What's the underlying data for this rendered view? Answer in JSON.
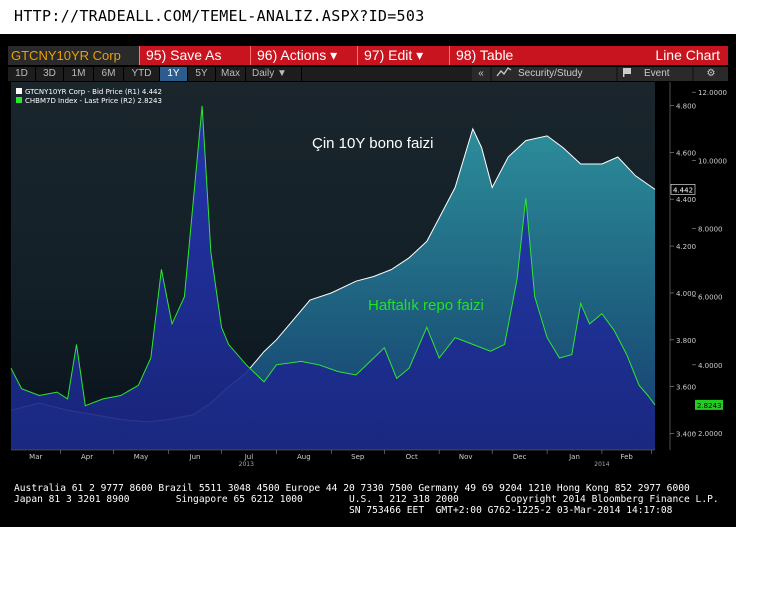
{
  "url": "HTTP://TRADEALL.COM/TEMEL-ANALIZ.ASPX?ID=503",
  "toolbar": {
    "ticker": "GTCNY10YR Corp",
    "save_num": "95)",
    "save_label": "Save As",
    "actions_num": "96)",
    "actions_label": "Actions",
    "edit_num": "97)",
    "edit_label": "Edit",
    "table_num": "98)",
    "table_label": "Table",
    "chart_type": "Line Chart",
    "dropdown_glyph": "▾"
  },
  "range_bar": {
    "periods": [
      "1D",
      "3D",
      "1M",
      "6M",
      "YTD",
      "1Y",
      "5Y",
      "Max"
    ],
    "active": "1Y",
    "frequency": "Daily",
    "frequency_glyph": "▼",
    "collapse_glyph": "«",
    "security_study": "Security/Study",
    "event": "Event",
    "settings_glyph": "⚙"
  },
  "colors": {
    "bond_line": "#ffffff",
    "bond_fill": "#2c8d9a",
    "repo_line": "#2ee62e",
    "repo_fill": "#1a2fa8",
    "background": "#000000",
    "toolbar": "#c8141e"
  },
  "chart_data": {
    "type": "area",
    "legend": [
      {
        "name": "GTCNY10YR Corp - Bid Price (R1)",
        "last": "4.442"
      },
      {
        "name": "CHBM7D Index - Last Price (R2)",
        "last": "2.8243"
      }
    ],
    "annotations": [
      "Çin 10Y bono faizi",
      "Haftalık repo faizi"
    ],
    "x_labels": [
      "Mar",
      "Apr",
      "May",
      "Jun",
      "Jul",
      "Aug",
      "Sep",
      "Oct",
      "Nov",
      "Dec",
      "Jan",
      "Feb"
    ],
    "year_labels": [
      "2013",
      "2014"
    ],
    "x_range": [
      "2013-03-04",
      "2014-03-03"
    ],
    "y1_axis": {
      "ticks": [
        "4.800",
        "4.600",
        "4.400",
        "4.200",
        "4.000",
        "3.800",
        "3.600",
        "3.400"
      ],
      "range": [
        3.33,
        4.9
      ]
    },
    "y2_axis": {
      "ticks": [
        "12.0000",
        "10.0000",
        "8.0000",
        "6.0000",
        "4.0000",
        "2.0000"
      ],
      "range": [
        1.5,
        12.3
      ]
    },
    "last_values": {
      "bond": "4.442",
      "repo": "2.8243"
    },
    "series": [
      {
        "key": "bond",
        "axis": "y1",
        "points": [
          [
            "2013-03-04",
            3.5
          ],
          [
            "2013-03-20",
            3.53
          ],
          [
            "2013-04-05",
            3.5
          ],
          [
            "2013-04-20",
            3.48
          ],
          [
            "2013-05-05",
            3.46
          ],
          [
            "2013-05-20",
            3.45
          ],
          [
            "2013-06-01",
            3.46
          ],
          [
            "2013-06-15",
            3.48
          ],
          [
            "2013-06-25",
            3.53
          ],
          [
            "2013-07-05",
            3.6
          ],
          [
            "2013-07-15",
            3.66
          ],
          [
            "2013-07-25",
            3.75
          ],
          [
            "2013-08-01",
            3.8
          ],
          [
            "2013-08-10",
            3.88
          ],
          [
            "2013-08-20",
            3.97
          ],
          [
            "2013-09-01",
            4.0
          ],
          [
            "2013-09-15",
            4.05
          ],
          [
            "2013-09-25",
            4.07
          ],
          [
            "2013-10-05",
            4.1
          ],
          [
            "2013-10-15",
            4.15
          ],
          [
            "2013-10-25",
            4.22
          ],
          [
            "2013-11-01",
            4.32
          ],
          [
            "2013-11-10",
            4.45
          ],
          [
            "2013-11-20",
            4.7
          ],
          [
            "2013-11-25",
            4.62
          ],
          [
            "2013-12-01",
            4.45
          ],
          [
            "2013-12-10",
            4.58
          ],
          [
            "2013-12-20",
            4.65
          ],
          [
            "2014-01-01",
            4.67
          ],
          [
            "2014-01-10",
            4.62
          ],
          [
            "2014-01-20",
            4.55
          ],
          [
            "2014-02-01",
            4.55
          ],
          [
            "2014-02-10",
            4.58
          ],
          [
            "2014-02-20",
            4.5
          ],
          [
            "2014-03-03",
            4.442
          ]
        ]
      },
      {
        "key": "repo",
        "axis": "y2",
        "points": [
          [
            "2013-03-04",
            3.9
          ],
          [
            "2013-03-10",
            3.3
          ],
          [
            "2013-03-20",
            3.1
          ],
          [
            "2013-03-30",
            3.2
          ],
          [
            "2013-04-05",
            3.0
          ],
          [
            "2013-04-10",
            4.6
          ],
          [
            "2013-04-15",
            2.8
          ],
          [
            "2013-04-25",
            3.0
          ],
          [
            "2013-05-05",
            3.1
          ],
          [
            "2013-05-15",
            3.4
          ],
          [
            "2013-05-22",
            4.2
          ],
          [
            "2013-05-28",
            6.8
          ],
          [
            "2013-06-03",
            5.2
          ],
          [
            "2013-06-10",
            6.0
          ],
          [
            "2013-06-20",
            11.6
          ],
          [
            "2013-06-25",
            7.3
          ],
          [
            "2013-07-01",
            5.1
          ],
          [
            "2013-07-05",
            4.6
          ],
          [
            "2013-07-15",
            4.0
          ],
          [
            "2013-07-25",
            3.5
          ],
          [
            "2013-08-01",
            4.0
          ],
          [
            "2013-08-15",
            4.1
          ],
          [
            "2013-08-25",
            4.0
          ],
          [
            "2013-09-05",
            3.8
          ],
          [
            "2013-09-15",
            3.7
          ],
          [
            "2013-09-25",
            4.2
          ],
          [
            "2013-10-01",
            4.5
          ],
          [
            "2013-10-08",
            3.6
          ],
          [
            "2013-10-15",
            3.9
          ],
          [
            "2013-10-25",
            5.1
          ],
          [
            "2013-11-01",
            4.2
          ],
          [
            "2013-11-10",
            4.8
          ],
          [
            "2013-11-20",
            4.6
          ],
          [
            "2013-11-30",
            4.4
          ],
          [
            "2013-12-08",
            4.6
          ],
          [
            "2013-12-15",
            6.5
          ],
          [
            "2013-12-20",
            8.9
          ],
          [
            "2013-12-25",
            6.0
          ],
          [
            "2014-01-01",
            4.8
          ],
          [
            "2014-01-08",
            4.2
          ],
          [
            "2014-01-15",
            4.3
          ],
          [
            "2014-01-20",
            5.8
          ],
          [
            "2014-01-25",
            5.2
          ],
          [
            "2014-02-01",
            5.5
          ],
          [
            "2014-02-08",
            5.0
          ],
          [
            "2014-02-15",
            4.3
          ],
          [
            "2014-02-22",
            3.4
          ],
          [
            "2014-02-27",
            3.1
          ],
          [
            "2014-03-03",
            2.8243
          ]
        ]
      }
    ]
  },
  "footer": {
    "line1": "Australia 61 2 9777 8600 Brazil 5511 3048 4500 Europe 44 20 7330 7500 Germany 49 69 9204 1210 Hong Kong 852 2977 6000",
    "line2": "Japan 81 3 3201 8900        Singapore 65 6212 1000        U.S. 1 212 318 2000        Copyright 2014 Bloomberg Finance L.P.",
    "line3": "                                                          SN 753466 EET  GMT+2:00 G762-1225-2 03-Mar-2014 14:17:08"
  }
}
